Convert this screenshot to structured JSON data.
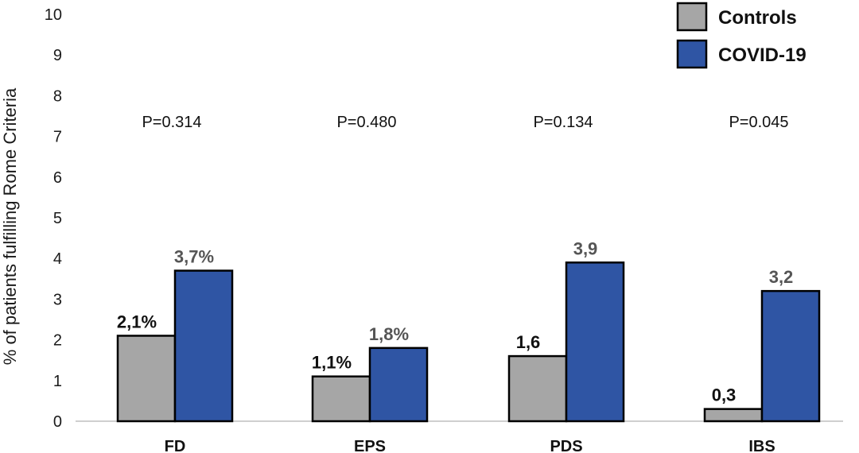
{
  "chart_data": {
    "type": "bar",
    "ylabel": "% of patients fulfilling Rome Criteria",
    "ylim": [
      0,
      10
    ],
    "yticks": [
      "0",
      "1",
      "2",
      "3",
      "4",
      "5",
      "6",
      "7",
      "8",
      "9",
      "10"
    ],
    "categories": [
      "FD",
      "EPS",
      "PDS",
      "IBS"
    ],
    "series": [
      {
        "name": "Controls",
        "values": [
          2.1,
          1.1,
          1.6,
          0.3
        ],
        "labels": [
          "2,1%",
          "1,1%",
          "1,6",
          "0,3"
        ],
        "color": "#a6a6a6",
        "label_color": "#111111"
      },
      {
        "name": "COVID-19",
        "values": [
          3.7,
          1.8,
          3.9,
          3.2
        ],
        "labels": [
          "3,7%",
          "1,8%",
          "3,9",
          "3,2"
        ],
        "color": "#2f55a4",
        "label_color": "#555555"
      }
    ],
    "annotations": [
      "P=0.314",
      "P=0.480",
      "P=0.134",
      "P=0.045"
    ],
    "legend_position": "top-right",
    "grid": false
  }
}
